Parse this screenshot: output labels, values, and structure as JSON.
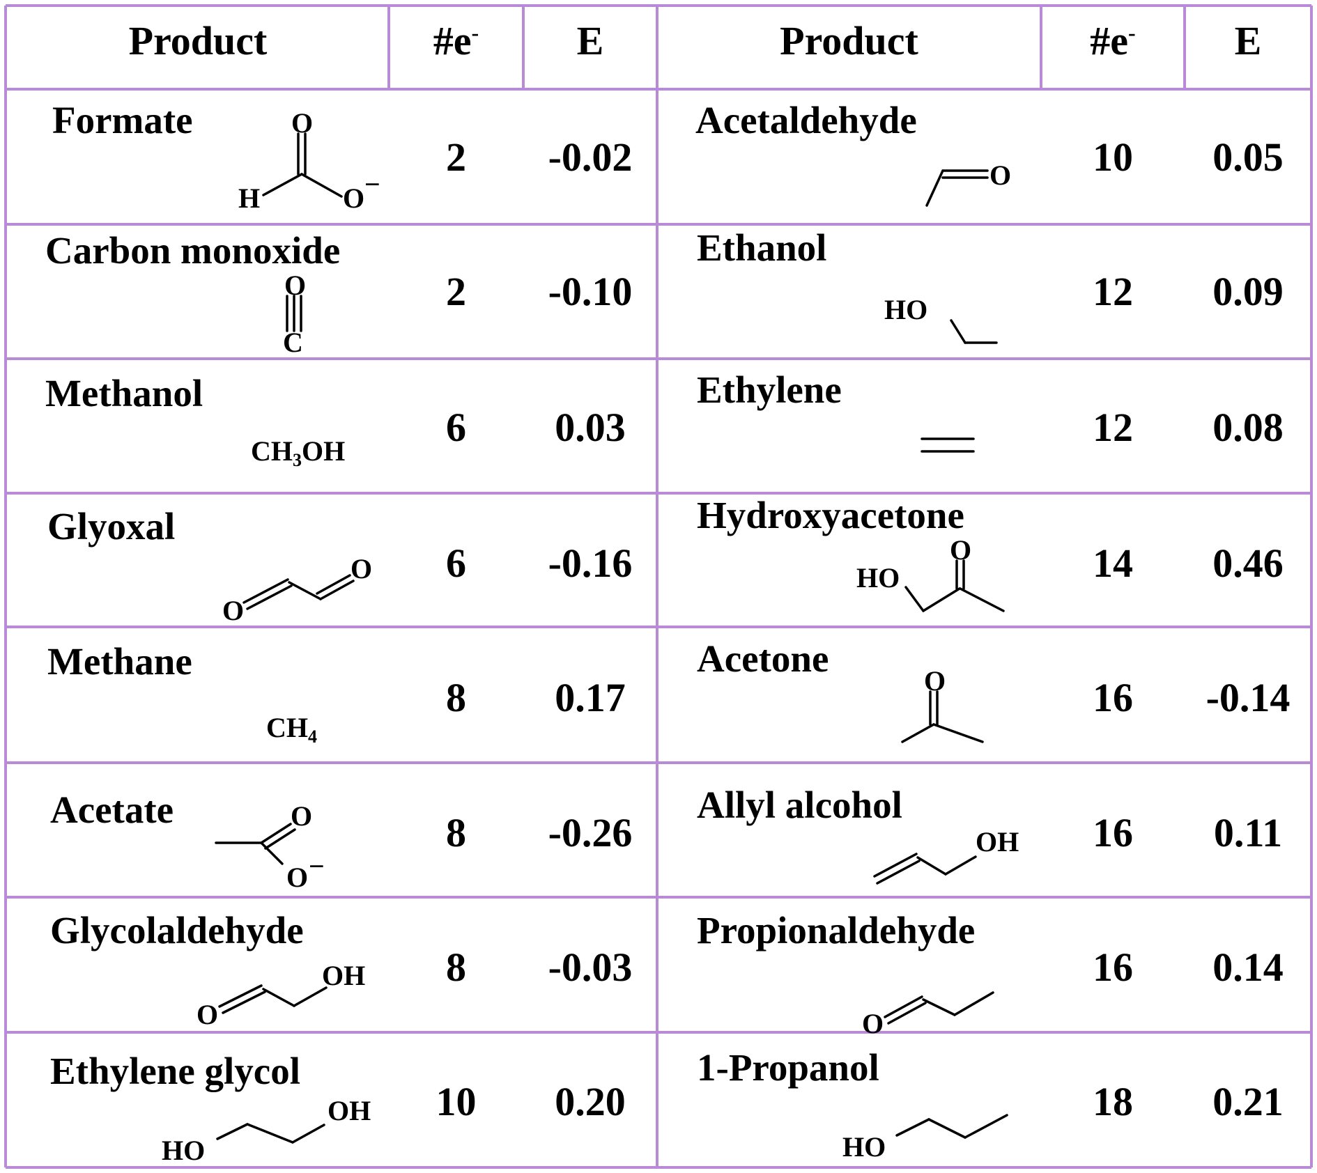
{
  "border_color": "#b98ad6",
  "headers": {
    "left": {
      "product": "Product",
      "electrons": "#e",
      "electrons_sup": "-",
      "energy": "E"
    },
    "right": {
      "product": "Product",
      "electrons": "#e",
      "electrons_sup": "-",
      "energy": "E"
    }
  },
  "left_rows": [
    {
      "name": "Formate",
      "electrons": "2",
      "energy": "-0.02",
      "structure": "formate-structure"
    },
    {
      "name": "Carbon monoxide",
      "electrons": "2",
      "energy": "-0.10",
      "structure": "carbon-monoxide-structure"
    },
    {
      "name": "Methanol",
      "electrons": "6",
      "energy": "0.03",
      "formula": "CH3OH"
    },
    {
      "name": "Glyoxal",
      "electrons": "6",
      "energy": "-0.16",
      "structure": "glyoxal-structure"
    },
    {
      "name": "Methane",
      "electrons": "8",
      "energy": "0.17",
      "formula": "CH4"
    },
    {
      "name": "Acetate",
      "electrons": "8",
      "energy": "-0.26",
      "structure": "acetate-structure"
    },
    {
      "name": "Glycolaldehyde",
      "electrons": "8",
      "energy": "-0.03",
      "structure": "glycolaldehyde-structure"
    },
    {
      "name": "Ethylene glycol",
      "electrons": "10",
      "energy": "0.20",
      "structure": "ethylene-glycol-structure"
    }
  ],
  "right_rows": [
    {
      "name": "Acetaldehyde",
      "electrons": "10",
      "energy": "0.05",
      "structure": "acetaldehyde-structure"
    },
    {
      "name": "Ethanol",
      "electrons": "12",
      "energy": "0.09",
      "structure": "ethanol-structure"
    },
    {
      "name": "Ethylene",
      "electrons": "12",
      "energy": "0.08",
      "structure": "ethylene-structure"
    },
    {
      "name": "Hydroxyacetone",
      "electrons": "14",
      "energy": "0.46",
      "structure": "hydroxyacetone-structure"
    },
    {
      "name": "Acetone",
      "electrons": "16",
      "energy": "-0.14",
      "structure": "acetone-structure"
    },
    {
      "name": "Allyl alcohol",
      "electrons": "16",
      "energy": "0.11",
      "structure": "allyl-alcohol-structure"
    },
    {
      "name": "Propionaldehyde",
      "electrons": "16",
      "energy": "0.14",
      "structure": "propionaldehyde-structure"
    },
    {
      "name": "1-Propanol",
      "electrons": "18",
      "energy": "0.21",
      "structure": "propanol-structure"
    }
  ],
  "atom_labels": {
    "O": "O",
    "H": "H",
    "C": "C",
    "OH": "OH",
    "HO": "HO",
    "minus": "−",
    "ch": "CH",
    "oh": "OH",
    "three": "3",
    "four": "4"
  }
}
